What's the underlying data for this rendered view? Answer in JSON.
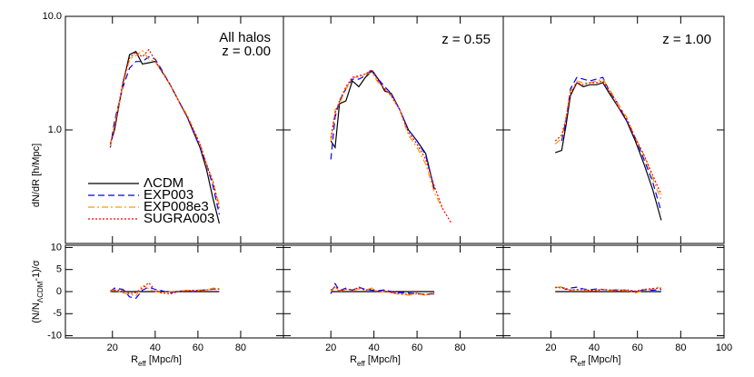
{
  "chart_data": [
    {
      "type": "line",
      "log": true,
      "xlim": [
        -2,
        100
      ],
      "ylim": [
        0.1,
        10
      ],
      "yticks": [
        {
          "value": 1,
          "label": "1.0"
        },
        {
          "value": 10,
          "label": "10.0"
        }
      ],
      "ylabel": "dN/dR [h/Mpc]",
      "annotations": [
        "All halos",
        "z = 0.00"
      ],
      "legend": "lower left",
      "x": [
        19,
        21,
        25,
        28,
        31,
        34,
        37,
        40,
        43,
        47,
        51,
        55,
        58,
        61,
        64,
        67,
        70
      ],
      "series": [
        {
          "name": "ΛCDM",
          "color": "#000000",
          "values": [
            0.75,
            1.0,
            2.6,
            4.6,
            4.9,
            3.8,
            3.9,
            4.0,
            3.3,
            2.5,
            1.8,
            1.3,
            0.95,
            0.7,
            0.45,
            0.25,
            0.15
          ]
        },
        {
          "name": "EXP003",
          "color": "#0000ff",
          "values": [
            0.7,
            1.2,
            2.4,
            3.5,
            4.0,
            4.0,
            4.4,
            4.2,
            3.4,
            2.5,
            1.8,
            1.3,
            0.95,
            0.7,
            0.5,
            0.32,
            0.18
          ]
        },
        {
          "name": "EXP008e3",
          "color": "#ff9900",
          "values": [
            0.72,
            1.1,
            2.5,
            4.2,
            4.5,
            5.0,
            4.2,
            4.0,
            3.3,
            2.5,
            1.8,
            1.35,
            1.0,
            0.75,
            0.5,
            0.35,
            0.22
          ]
        },
        {
          "name": "SUGRA003",
          "color": "#ff0000",
          "values": [
            0.75,
            1.05,
            2.7,
            4.3,
            4.8,
            4.4,
            5.1,
            4.1,
            3.3,
            2.5,
            1.8,
            1.3,
            1.0,
            0.75,
            0.5,
            0.35,
            0.2
          ]
        }
      ]
    },
    {
      "type": "line",
      "log": true,
      "xlim": [
        -2,
        100
      ],
      "ylim": [
        0.1,
        10
      ],
      "annotations": [
        "z = 0.55"
      ],
      "x": [
        20,
        22,
        24,
        27,
        30,
        33,
        36,
        39,
        42,
        45,
        48,
        52,
        56,
        60,
        64,
        68,
        72,
        76
      ],
      "series": [
        {
          "name": "ΛCDM",
          "color": "#000000",
          "values": [
            0.8,
            0.7,
            1.7,
            1.8,
            2.7,
            2.4,
            2.9,
            3.3,
            2.8,
            2.2,
            2.1,
            1.5,
            1.0,
            0.8,
            0.62,
            0.3,
            null,
            null
          ]
        },
        {
          "name": "EXP003",
          "color": "#0000ff",
          "values": [
            0.55,
            1.3,
            1.8,
            2.3,
            2.8,
            2.8,
            3.0,
            3.4,
            2.8,
            2.4,
            2.1,
            1.5,
            1.0,
            0.8,
            0.6,
            0.3,
            null,
            null
          ]
        },
        {
          "name": "EXP008e3",
          "color": "#ff9900",
          "values": [
            0.8,
            1.5,
            1.7,
            2.3,
            2.9,
            2.9,
            3.1,
            3.2,
            2.6,
            2.3,
            2.0,
            1.5,
            0.9,
            0.7,
            0.5,
            0.28,
            0.2,
            null
          ]
        },
        {
          "name": "SUGRA003",
          "color": "#ff0000",
          "values": [
            0.85,
            1.4,
            1.8,
            2.4,
            2.9,
            3.0,
            3.1,
            3.4,
            2.7,
            2.3,
            2.0,
            1.5,
            0.95,
            0.75,
            0.55,
            0.32,
            0.2,
            0.15
          ]
        }
      ]
    },
    {
      "type": "line",
      "log": true,
      "xlim": [
        -2,
        100
      ],
      "ylim": [
        0.1,
        10
      ],
      "annotations": [
        "z = 1.00"
      ],
      "x": [
        22,
        25,
        27,
        29,
        32,
        35,
        38,
        41,
        44,
        47,
        51,
        55,
        59,
        63,
        67,
        71
      ],
      "series": [
        {
          "name": "ΛCDM",
          "color": "#000000",
          "values": [
            0.63,
            0.66,
            1.1,
            2.0,
            2.6,
            2.4,
            2.5,
            2.5,
            2.6,
            2.1,
            1.6,
            1.2,
            0.8,
            0.5,
            0.3,
            0.16
          ]
        },
        {
          "name": "EXP003",
          "color": "#0000ff",
          "values": [
            null,
            0.8,
            1.2,
            2.3,
            2.9,
            2.8,
            2.7,
            2.8,
            2.9,
            2.2,
            1.7,
            1.2,
            0.85,
            0.55,
            0.35,
            0.19
          ]
        },
        {
          "name": "EXP008e3",
          "color": "#ff9900",
          "values": [
            0.75,
            0.85,
            1.3,
            2.2,
            2.7,
            2.6,
            2.6,
            2.7,
            2.8,
            2.3,
            1.7,
            1.3,
            0.85,
            0.6,
            0.38,
            0.24
          ]
        },
        {
          "name": "SUGRA003",
          "color": "#ff0000",
          "values": [
            0.8,
            0.9,
            1.25,
            2.1,
            2.6,
            2.5,
            2.6,
            2.6,
            2.7,
            2.2,
            1.6,
            1.25,
            0.85,
            0.6,
            0.4,
            0.27
          ]
        }
      ]
    },
    {
      "type": "line",
      "xlim": [
        -2,
        100
      ],
      "ylim": [
        -10.5,
        10.5
      ],
      "yticks": [
        -10,
        -5,
        0,
        5,
        10
      ],
      "xticks": [
        20,
        40,
        60,
        80
      ],
      "ylabel": [
        "(N/N",
        "ΛCDM",
        "-1)/σ"
      ],
      "xlabel": [
        "R",
        "eff",
        " [Mpc/h]"
      ],
      "x": [
        19,
        21,
        25,
        28,
        31,
        34,
        37,
        40,
        43,
        47,
        51,
        55,
        58,
        61,
        64,
        67,
        70
      ],
      "series": [
        {
          "name": "ΛCDM",
          "color": "#000000",
          "values": [
            0,
            0,
            0,
            0,
            0,
            0,
            0,
            0,
            0,
            0,
            0,
            0,
            0,
            0,
            0,
            0,
            0
          ]
        },
        {
          "name": "EXP003",
          "color": "#0000ff",
          "values": [
            0,
            0.8,
            0.5,
            -1.2,
            -1.5,
            0.3,
            1.0,
            0.5,
            0.2,
            -0.3,
            0.1,
            0.2,
            0,
            0.3,
            0.4,
            0.6,
            0.6
          ]
        },
        {
          "name": "EXP008e3",
          "color": "#ff9900",
          "values": [
            0,
            0.5,
            -0.3,
            -0.6,
            -1.0,
            1.5,
            0.6,
            0,
            -0.2,
            0,
            0.1,
            0.3,
            0.2,
            0.4,
            0.3,
            0.8,
            0.7
          ]
        },
        {
          "name": "SUGRA003",
          "color": "#ff0000",
          "values": [
            0.2,
            0.3,
            0.4,
            -0.5,
            -0.2,
            0.8,
            2.0,
            0.3,
            -0.3,
            -0.5,
            0,
            0.2,
            0.3,
            0.2,
            0.4,
            0.5,
            0.6
          ]
        }
      ]
    },
    {
      "type": "line",
      "xlim": [
        -2,
        100
      ],
      "ylim": [
        -10.5,
        10.5
      ],
      "xticks": [
        20,
        40,
        60,
        80
      ],
      "xlabel": [
        "R",
        "eff",
        " [Mpc/h]"
      ],
      "x": [
        20,
        22,
        24,
        27,
        30,
        33,
        36,
        39,
        42,
        45,
        48,
        52,
        56,
        60,
        64,
        68
      ],
      "series": [
        {
          "name": "ΛCDM",
          "color": "#000000",
          "values": [
            0,
            0,
            0,
            0,
            0,
            0,
            0,
            0,
            0,
            0,
            0,
            0,
            0,
            0,
            0,
            0
          ]
        },
        {
          "name": "EXP003",
          "color": "#0000ff",
          "values": [
            -0.5,
            1.8,
            0.2,
            0.8,
            0.3,
            1.0,
            0.5,
            0.3,
            0.2,
            0.4,
            0,
            -0.2,
            -0.3,
            -0.5,
            -0.6,
            -0.5
          ]
        },
        {
          "name": "EXP008e3",
          "color": "#ff9900",
          "values": [
            0,
            1.0,
            0,
            0.5,
            0.2,
            0.6,
            0.3,
            0.8,
            -0.2,
            0.1,
            -0.3,
            -0.6,
            -0.8,
            -0.5,
            -0.8,
            -0.6
          ]
        },
        {
          "name": "SUGRA003",
          "color": "#ff0000",
          "values": [
            0.3,
            1.2,
            0.1,
            0.6,
            0.4,
            0.9,
            0.3,
            0.6,
            0,
            0.2,
            -0.2,
            -0.5,
            -0.6,
            -0.4,
            -0.7,
            -0.3
          ]
        }
      ]
    },
    {
      "type": "line",
      "xlim": [
        -2,
        100
      ],
      "ylim": [
        -10.5,
        10.5
      ],
      "xticks": [
        20,
        40,
        60,
        80,
        100
      ],
      "xlabel": [
        "R",
        "eff",
        " [Mpc/h]"
      ],
      "x": [
        22,
        25,
        27,
        29,
        32,
        35,
        38,
        41,
        44,
        47,
        51,
        55,
        59,
        63,
        67,
        71
      ],
      "series": [
        {
          "name": "ΛCDM",
          "color": "#000000",
          "values": [
            0,
            0,
            0,
            0,
            0,
            0,
            0,
            0,
            0,
            0,
            0,
            0,
            0,
            0,
            0,
            0
          ]
        },
        {
          "name": "EXP003",
          "color": "#0000ff",
          "values": [
            null,
            1.0,
            0.5,
            0.8,
            1.0,
            0.6,
            0.4,
            0.6,
            0.5,
            0.3,
            0.4,
            0.3,
            0,
            0.4,
            0.3,
            0.5
          ]
        },
        {
          "name": "EXP008e3",
          "color": "#ff9900",
          "values": [
            0.8,
            1.2,
            0.6,
            0.4,
            0.3,
            0.5,
            0.2,
            0.4,
            0.6,
            0.2,
            0.5,
            0.2,
            -0.3,
            0.2,
            0.6,
            1.2
          ]
        },
        {
          "name": "SUGRA003",
          "color": "#ff0000",
          "values": [
            1.0,
            0.8,
            0.7,
            0.3,
            0.5,
            0.4,
            0.3,
            0.2,
            0.5,
            0.4,
            0.2,
            0.4,
            0.1,
            0.5,
            0.7,
            0.8
          ]
        }
      ]
    }
  ]
}
